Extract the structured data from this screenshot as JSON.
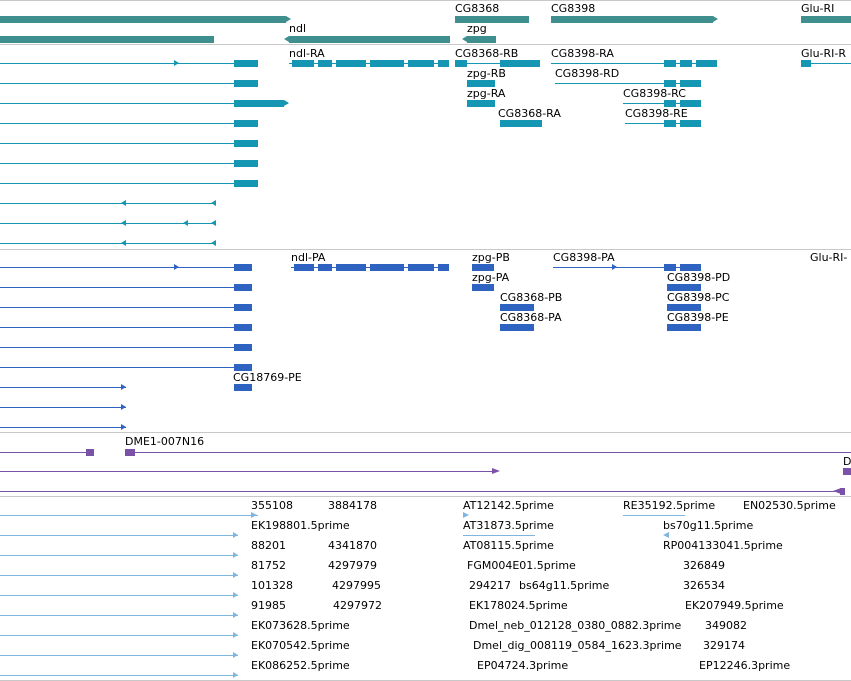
{
  "colors": {
    "gene_track": "#3f8f8f",
    "transcript_teal": "#1597b3",
    "transcript_blue": "#2e63c2",
    "clone_purple": "#7a52a8",
    "est_light": "#7fb6de",
    "separator": "#c8c8c8"
  },
  "gene_track": {
    "labels": [
      "CG8368",
      "CG8398",
      "Glu-RI",
      "ndl",
      "zpg"
    ]
  },
  "transcripts_1": {
    "labels": [
      "ndl-RA",
      "CG8368-RB",
      "CG8398-RA",
      "Glu-RI-R",
      "zpg-RB",
      "CG8398-RD",
      "zpg-RA",
      "CG8398-RC",
      "CG8368-RA",
      "CG8398-RE"
    ]
  },
  "transcripts_2": {
    "labels": [
      "ndl-PA",
      "zpg-PB",
      "CG8398-PA",
      "Glu-RI-",
      "zpg-PA",
      "CG8398-PD",
      "CG8368-PB",
      "CG8398-PC",
      "CG8368-PA",
      "CG8398-PE",
      "CG18769-PE"
    ]
  },
  "clones": {
    "labels": [
      "DME1-007N16",
      "D"
    ]
  },
  "est": {
    "labels": [
      "355108",
      "3884178",
      "AT12142.5prime",
      "RE35192.5prime",
      "EN02530.5prime",
      "EK198801.5prime",
      "AT31873.5prime",
      "bs70g11.5prime",
      "88201",
      "4341870",
      "AT08115.5prime",
      "RP004133041.5prime",
      "81752",
      "4297979",
      "FGM004E01.5prime",
      "326849",
      "101328",
      "4297995",
      "294217",
      "bs64g11.5prime",
      "326534",
      "91985",
      "4297972",
      "EK178024.5prime",
      "EK207949.5prime",
      "EK073628.5prime",
      "Dmel_neb_012128_0380_0882.3prime",
      "349082",
      "EK070542.5prime",
      "Dmel_dig_008119_0584_1623.3prime",
      "329174",
      "EK086252.5prime",
      "EP04724.3prime",
      "EP12246.3prime"
    ]
  }
}
